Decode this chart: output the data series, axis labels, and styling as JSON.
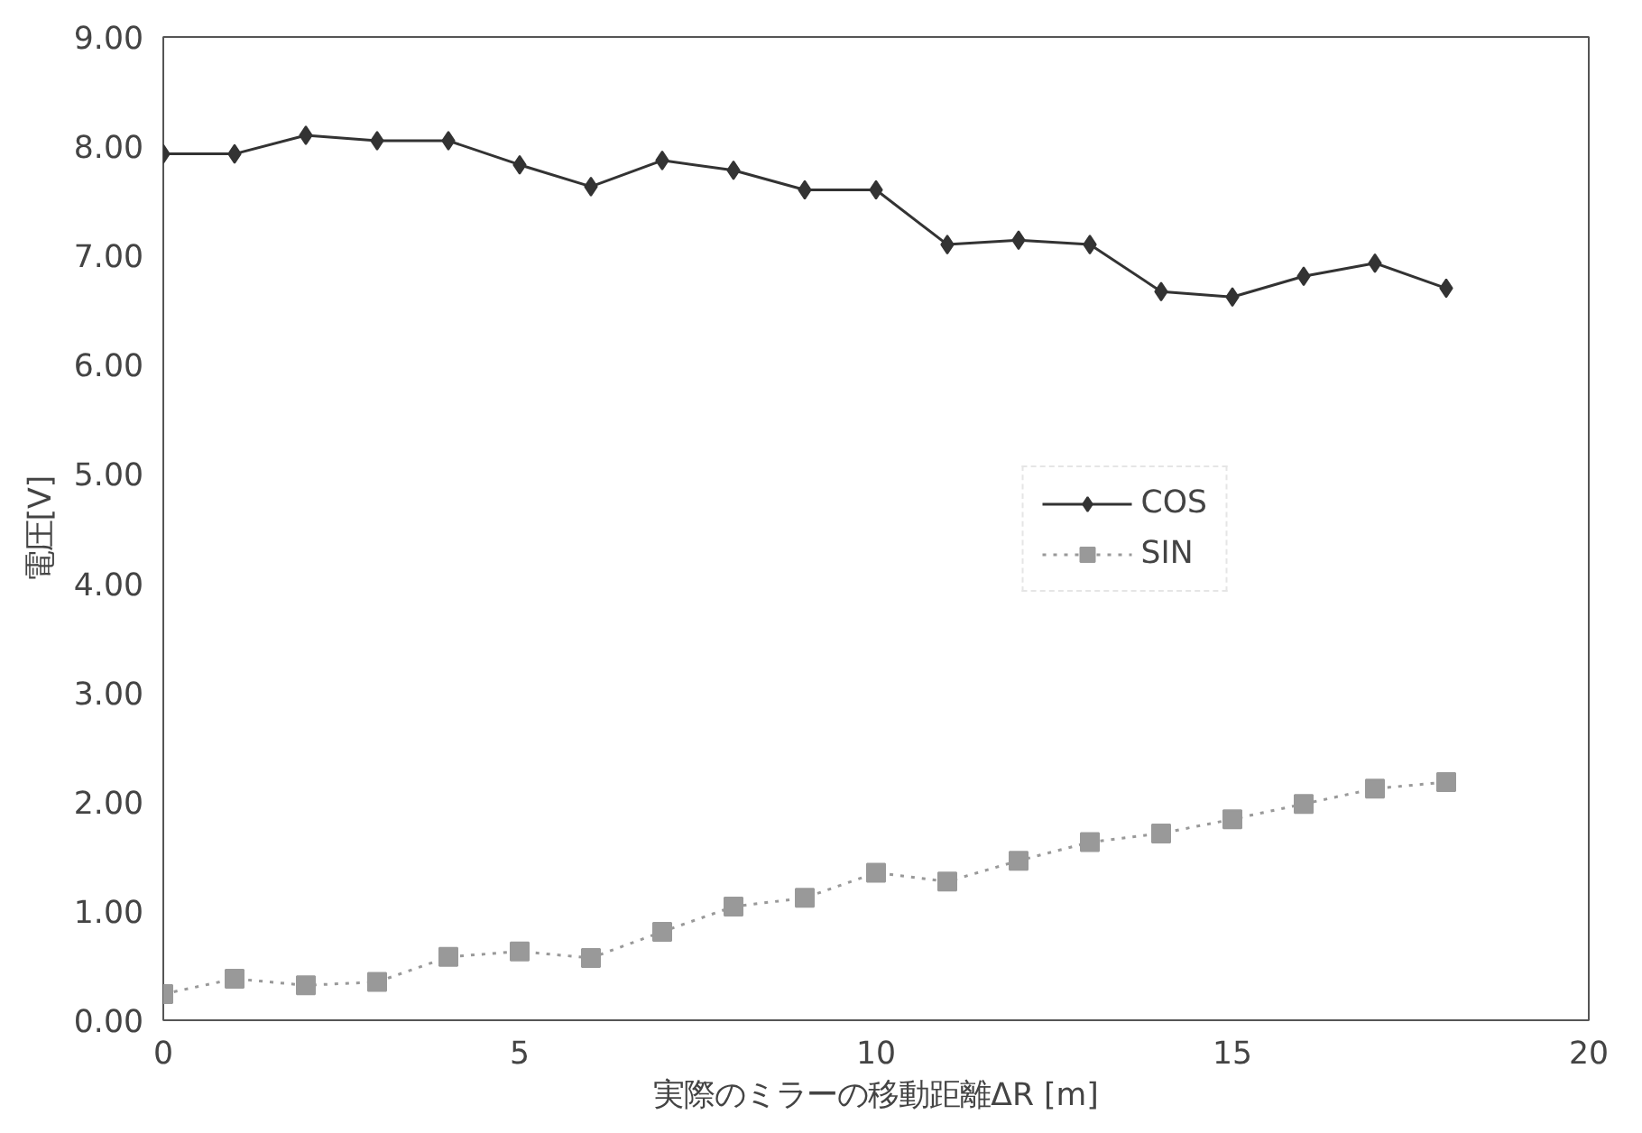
{
  "chart_data": {
    "type": "line",
    "xlabel": "実際のミラーの移動距離ΔR [m]",
    "ylabel": "電圧[V]",
    "x": [
      0,
      1,
      2,
      3,
      4,
      5,
      6,
      7,
      8,
      9,
      10,
      11,
      12,
      13,
      14,
      15,
      16,
      17,
      18
    ],
    "series": [
      {
        "name": "COS",
        "color": "#333333",
        "marker": "diamond",
        "line_style": "solid",
        "values": [
          7.93,
          7.93,
          8.1,
          8.05,
          8.05,
          7.83,
          7.63,
          7.87,
          7.78,
          7.6,
          7.6,
          7.1,
          7.14,
          7.1,
          6.67,
          6.62,
          6.81,
          6.93,
          6.7
        ]
      },
      {
        "name": "SIN",
        "color": "#999999",
        "marker": "square",
        "line_style": "dotted",
        "values": [
          0.24,
          0.38,
          0.32,
          0.35,
          0.58,
          0.63,
          0.57,
          0.81,
          1.04,
          1.12,
          1.35,
          1.27,
          1.46,
          1.63,
          1.71,
          1.84,
          1.98,
          2.12,
          2.18
        ]
      }
    ],
    "xlim": [
      0,
      20
    ],
    "xticks": [
      0,
      5,
      10,
      15,
      20
    ],
    "ylim": [
      0,
      9
    ],
    "yticks": [
      {
        "value": 0,
        "label": "0.00"
      },
      {
        "value": 1,
        "label": "1.00"
      },
      {
        "value": 2,
        "label": "2.00"
      },
      {
        "value": 3,
        "label": "3.00"
      },
      {
        "value": 4,
        "label": "4.00"
      },
      {
        "value": 5,
        "label": "5.00"
      },
      {
        "value": 6,
        "label": "6.00"
      },
      {
        "value": 7,
        "label": "7.00"
      },
      {
        "value": 8,
        "label": "8.00"
      },
      {
        "value": 9,
        "label": "9.00"
      }
    ],
    "grid": false,
    "legend": "right"
  }
}
